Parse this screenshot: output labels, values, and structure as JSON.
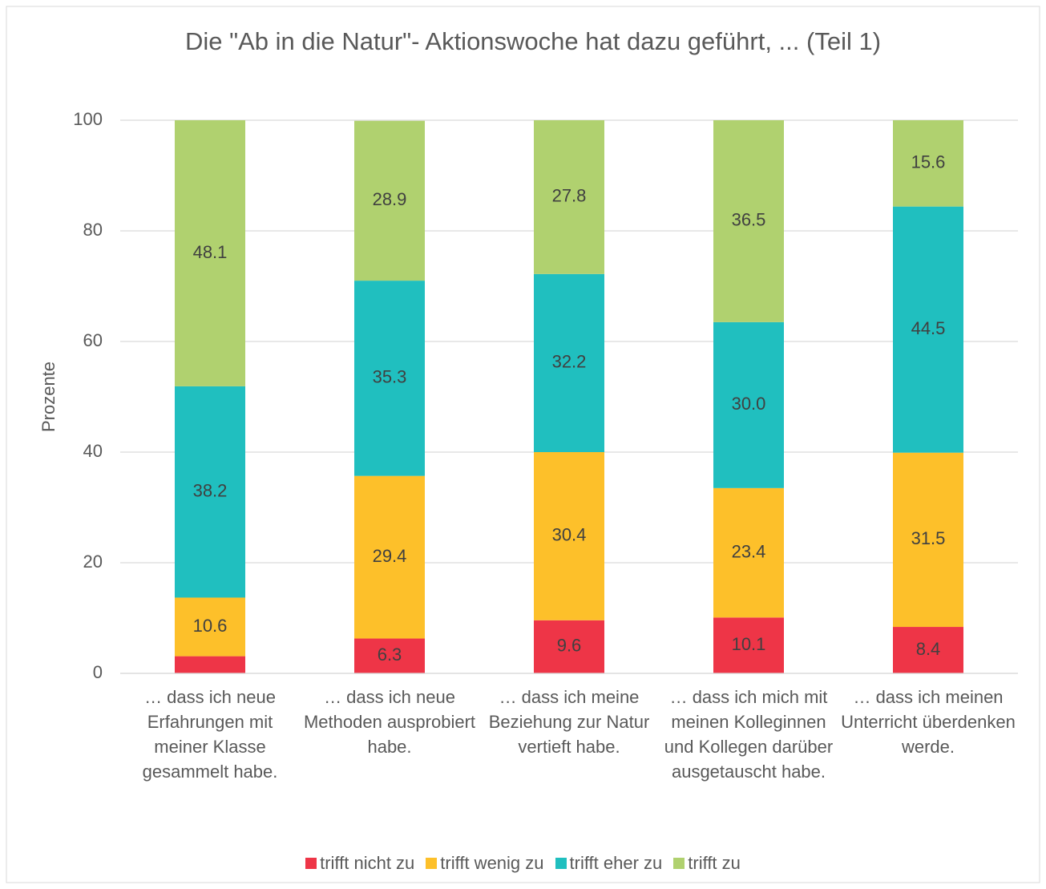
{
  "chart_data": {
    "type": "stacked_bar",
    "title": "Die \"Ab in die Natur\"- Aktionswoche hat dazu geführt, ... (Teil 1)",
    "y_label": "Prozente",
    "categories": [
      "… dass ich neue Erfahrungen mit meiner Klasse gesammelt habe.",
      "… dass ich neue Methoden ausprobiert habe.",
      "… dass ich meine Beziehung zur Natur vertieft habe.",
      "… dass ich mich mit meinen Kolleginnen und Kollegen darüber ausgetauscht habe.",
      "… dass ich meinen Unterricht überdenken werde."
    ],
    "series": [
      {
        "name": "trifft nicht zu",
        "color": "#ee3547",
        "values": [
          3.1,
          6.3,
          9.6,
          10.1,
          8.4
        ],
        "value_labels": [
          null,
          "6.3",
          "9.6",
          "10.1",
          "8.4"
        ]
      },
      {
        "name": "trifft wenig zu",
        "color": "#fdc02a",
        "values": [
          10.6,
          29.4,
          30.4,
          23.4,
          31.5
        ],
        "value_labels": [
          "10.6",
          "29.4",
          "30.4",
          "23.4",
          "31.5"
        ]
      },
      {
        "name": "trifft eher zu",
        "color": "#20bfbf",
        "values": [
          38.2,
          35.3,
          32.2,
          30.0,
          44.5
        ],
        "value_labels": [
          "38.2",
          "35.3",
          "32.2",
          "30.0",
          "44.5"
        ]
      },
      {
        "name": "trifft zu",
        "color": "#b0d16f",
        "values": [
          48.1,
          28.9,
          27.8,
          36.5,
          15.6
        ],
        "value_labels": [
          "48.1",
          "28.9",
          "27.8",
          "36.5",
          "15.6"
        ]
      }
    ],
    "ylim": [
      0,
      100
    ],
    "yticks": [
      0,
      20,
      40,
      60,
      80,
      100
    ],
    "grid": true,
    "legend": "bottom"
  }
}
